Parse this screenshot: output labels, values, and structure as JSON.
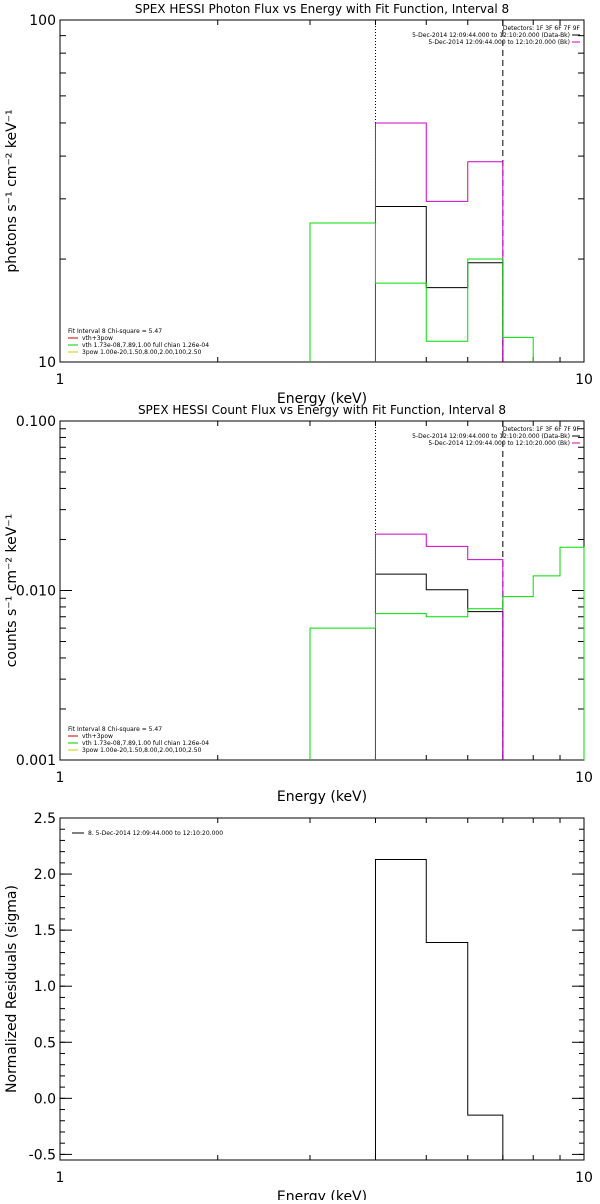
{
  "chart_data": [
    {
      "type": "line",
      "title": "SPEX HESSI Photon Flux vs Energy with Fit Function, Interval 8",
      "xlabel": "Energy (keV)",
      "ylabel": "photons s⁻¹ cm⁻² keV⁻¹",
      "x_scale": "log",
      "y_scale": "log",
      "xlim": [
        1,
        10
      ],
      "ylim": [
        10,
        100
      ],
      "x_ticks": [
        {
          "v": 1,
          "label": "1"
        },
        {
          "v": 10,
          "label": "10"
        }
      ],
      "y_ticks": [
        {
          "v": 10,
          "label": "10"
        },
        {
          "v": 100,
          "label": "100"
        }
      ],
      "vlines": [
        {
          "x": 4.0,
          "style": "dotted"
        },
        {
          "x": 7.0,
          "style": "dashed"
        }
      ],
      "legend_tr": [
        {
          "text": "Detectors: 1F 3F 6F 7F 9F",
          "color": ""
        },
        {
          "text": "5-Dec-2014 12:09:44.000 to 12:10:20.000 (Data-Bk)",
          "color": "#000000"
        },
        {
          "text": "5-Dec-2014 12:09:44.000 to 12:10:20.000 (Bk)",
          "color": "#cc00cc"
        }
      ],
      "legend_bl": [
        {
          "text": "Fit Interval 8   Chi-square = 5.47",
          "color": ""
        },
        {
          "text": "vth+3pow",
          "color": "#cc0000"
        },
        {
          "text": "vth 1.73e-08,7.89,1.00  full chian 1.26e-04",
          "color": "#00cc00"
        },
        {
          "text": "3pow 1.00e-20,1.50,8.00,2.00,100,2.50",
          "color": "#cccc00"
        }
      ],
      "series": [
        {
          "color": "#000000",
          "edges": [
            4.0,
            5.0,
            6.0,
            7.0
          ],
          "values": [
            28.5,
            16.5,
            19.5
          ]
        },
        {
          "color": "#cc00cc",
          "edges": [
            4.0,
            5.0,
            6.0,
            7.0
          ],
          "values": [
            50,
            29.5,
            38.5
          ]
        },
        {
          "color": "#00dd00",
          "edges": [
            3.0,
            4.0,
            5.0,
            6.0,
            7.0,
            8.0
          ],
          "values": [
            25.5,
            17.0,
            11.5,
            20.0,
            11.8
          ]
        }
      ]
    },
    {
      "type": "line",
      "title": "SPEX HESSI Count Flux vs Energy with Fit Function, Interval 8",
      "xlabel": "Energy (keV)",
      "ylabel": "counts s⁻¹ cm⁻² keV⁻¹",
      "x_scale": "log",
      "y_scale": "log",
      "xlim": [
        1,
        10
      ],
      "ylim": [
        0.001,
        0.1
      ],
      "x_ticks": [
        {
          "v": 1,
          "label": "1"
        },
        {
          "v": 10,
          "label": "10"
        }
      ],
      "y_ticks": [
        {
          "v": 0.001,
          "label": "0.001"
        },
        {
          "v": 0.01,
          "label": "0.010"
        },
        {
          "v": 0.1,
          "label": "0.100"
        }
      ],
      "vlines": [
        {
          "x": 4.0,
          "style": "dotted"
        },
        {
          "x": 7.0,
          "style": "dashed"
        }
      ],
      "legend_tr": [
        {
          "text": "Detectors: 1F 3F 6F 7F 9F",
          "color": ""
        },
        {
          "text": "5-Dec-2014 12:09:44.000 to 12:10:20.000 (Data-Bk)",
          "color": "#000000"
        },
        {
          "text": "5-Dec-2014 12:09:44.000 to 12:10:20.000 (Bk)",
          "color": "#cc00cc"
        }
      ],
      "legend_bl": [
        {
          "text": "Fit Interval 8   Chi-square = 5.47",
          "color": ""
        },
        {
          "text": "vth+3pow",
          "color": "#cc0000"
        },
        {
          "text": "vth 1.73e-08,7.89,1.00  full chian 1.26e-04",
          "color": "#00cc00"
        },
        {
          "text": "3pow 1.00e-20,1.50,8.00,2.00,100,2.50",
          "color": "#cccc00"
        }
      ],
      "series": [
        {
          "color": "#000000",
          "edges": [
            4.0,
            5.0,
            6.0,
            7.0
          ],
          "values": [
            0.0125,
            0.0101,
            0.0075
          ]
        },
        {
          "color": "#cc00cc",
          "edges": [
            4.0,
            5.0,
            6.0,
            7.0
          ],
          "values": [
            0.0215,
            0.0182,
            0.0152
          ]
        },
        {
          "color": "#00dd00",
          "edges": [
            3.0,
            4.0,
            5.0,
            6.0,
            7.0,
            8.0,
            9.0,
            10.0
          ],
          "values": [
            0.006,
            0.0073,
            0.007,
            0.0078,
            0.0092,
            0.0122,
            0.018
          ]
        }
      ]
    },
    {
      "type": "line",
      "title": "",
      "xlabel": "Energy (keV)",
      "ylabel": "Normalized Residuals (sigma)",
      "x_scale": "log",
      "y_scale": "linear",
      "xlim": [
        1,
        10
      ],
      "ylim": [
        -0.55,
        2.5
      ],
      "x_ticks": [
        {
          "v": 1,
          "label": "1"
        },
        {
          "v": 10,
          "label": "10"
        }
      ],
      "y_ticks": [
        {
          "v": -0.5,
          "label": "-0.5"
        },
        {
          "v": 0.0,
          "label": "0.0"
        },
        {
          "v": 0.5,
          "label": "0.5"
        },
        {
          "v": 1.0,
          "label": "1.0"
        },
        {
          "v": 1.5,
          "label": "1.5"
        },
        {
          "v": 2.0,
          "label": "2.0"
        },
        {
          "v": 2.5,
          "label": "2.5"
        }
      ],
      "vlines": [],
      "legend_tr": [],
      "legend_tl": [
        {
          "text": "8. 5-Dec-2014 12:09:44.000 to 12:10:20.000",
          "color": "#000000"
        }
      ],
      "legend_bl": [],
      "series": [
        {
          "color": "#000000",
          "edges": [
            4.0,
            5.0,
            6.0,
            7.0
          ],
          "values": [
            2.13,
            1.39,
            -0.15
          ],
          "drop_to": -0.55
        }
      ]
    }
  ]
}
